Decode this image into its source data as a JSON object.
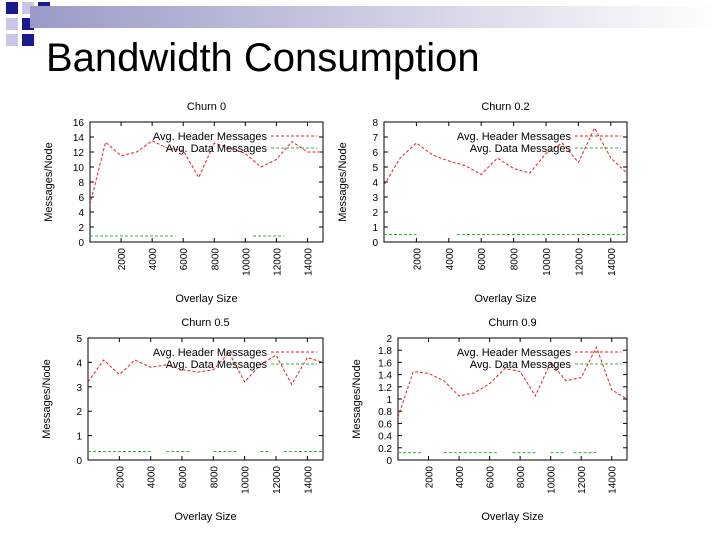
{
  "slide": {
    "title": "Bandwidth Consumption"
  },
  "colors": {
    "header_series": "#e02020",
    "data_series": "#30b030",
    "bullet_dark": "#1a1a8c",
    "bullet_light": "#c8c8e6"
  },
  "chart_data": [
    {
      "type": "line",
      "title": "Churn 0",
      "xlabel": "Overlay Size",
      "ylabel": "Messages/Node",
      "xlim": [
        0,
        15000
      ],
      "ylim": [
        0,
        16
      ],
      "xticks": [
        2000,
        4000,
        6000,
        8000,
        10000,
        12000,
        14000
      ],
      "yticks": [
        0,
        2,
        4,
        6,
        8,
        10,
        12,
        14,
        16
      ],
      "legend": "top-right",
      "series": [
        {
          "name": "Avg. Header Messages",
          "color": "#e02020",
          "x": [
            0,
            1000,
            2000,
            3000,
            4000,
            5000,
            6000,
            7000,
            8000,
            9000,
            10000,
            11000,
            12000,
            13000,
            14000,
            15000
          ],
          "y": [
            5,
            13.3,
            11.5,
            12,
            13.5,
            12.5,
            12.2,
            8.6,
            13.2,
            12.5,
            11.8,
            10,
            11,
            13.4,
            12,
            12
          ]
        },
        {
          "name": "Avg. Data Messages",
          "color": "#30b030",
          "segments": [
            {
              "x": [
                0,
                5500
              ],
              "y": [
                0.8,
                0.8
              ]
            },
            {
              "x": [
                10500,
                12500
              ],
              "y": [
                0.8,
                0.8
              ]
            }
          ]
        }
      ]
    },
    {
      "type": "line",
      "title": "Churn 0.2",
      "xlabel": "Overlay Size",
      "ylabel": "Messages/Node",
      "xlim": [
        0,
        15000
      ],
      "ylim": [
        0,
        8
      ],
      "xticks": [
        2000,
        4000,
        6000,
        8000,
        10000,
        12000,
        14000
      ],
      "yticks": [
        0,
        1,
        2,
        3,
        4,
        5,
        6,
        7,
        8
      ],
      "legend": "top-right",
      "series": [
        {
          "name": "Avg. Header Messages",
          "color": "#e02020",
          "x": [
            0,
            1000,
            2000,
            3000,
            4000,
            5000,
            6000,
            7000,
            8000,
            9000,
            10000,
            11000,
            12000,
            13000,
            14000,
            15000
          ],
          "y": [
            3.8,
            5.6,
            6.6,
            5.8,
            5.4,
            5.1,
            4.5,
            5.6,
            4.9,
            4.6,
            5.9,
            6.6,
            5.3,
            7.6,
            5.6,
            4.6
          ]
        },
        {
          "name": "Avg. Data Messages",
          "color": "#30b030",
          "segments": [
            {
              "x": [
                0,
                2000
              ],
              "y": [
                0.5,
                0.5
              ]
            },
            {
              "x": [
                4500,
                15000
              ],
              "y": [
                0.5,
                0.5
              ]
            }
          ]
        }
      ]
    },
    {
      "type": "line",
      "title": "Churn 0.5",
      "xlabel": "Overlay Size",
      "ylabel": "Messages/Node",
      "xlim": [
        0,
        15000
      ],
      "ylim": [
        0,
        5
      ],
      "xticks": [
        2000,
        4000,
        6000,
        8000,
        10000,
        12000,
        14000
      ],
      "yticks": [
        0,
        1,
        2,
        3,
        4,
        5
      ],
      "legend": "top-right",
      "series": [
        {
          "name": "Avg. Header Messages",
          "color": "#e02020",
          "x": [
            0,
            1000,
            2000,
            3000,
            4000,
            5000,
            6000,
            7000,
            8000,
            9000,
            10000,
            11000,
            12000,
            13000,
            14000,
            15000
          ],
          "y": [
            3.2,
            4.1,
            3.5,
            4.1,
            3.8,
            3.9,
            3.7,
            3.6,
            3.7,
            4.4,
            3.2,
            3.9,
            4.3,
            3.1,
            4.2,
            4
          ]
        },
        {
          "name": "Avg. Data Messages",
          "color": "#30b030",
          "segments": [
            {
              "x": [
                0,
                4000
              ],
              "y": [
                0.35,
                0.35
              ]
            },
            {
              "x": [
                5000,
                6500
              ],
              "y": [
                0.35,
                0.35
              ]
            },
            {
              "x": [
                8000,
                9500
              ],
              "y": [
                0.35,
                0.35
              ]
            },
            {
              "x": [
                11000,
                11500
              ],
              "y": [
                0.35,
                0.35
              ]
            },
            {
              "x": [
                12500,
                15000
              ],
              "y": [
                0.35,
                0.35
              ]
            }
          ]
        }
      ]
    },
    {
      "type": "line",
      "title": "Churn 0.9",
      "xlabel": "Overlay Size",
      "ylabel": "Messages/Node",
      "xlim": [
        0,
        15000
      ],
      "ylim": [
        0,
        2
      ],
      "xticks": [
        2000,
        4000,
        6000,
        8000,
        10000,
        12000,
        14000
      ],
      "yticks": [
        0,
        0.2,
        0.4,
        0.6,
        0.8,
        1,
        1.2,
        1.4,
        1.6,
        1.8,
        2
      ],
      "legend": "top-right",
      "series": [
        {
          "name": "Avg. Header Messages",
          "color": "#e02020",
          "x": [
            0,
            1000,
            2000,
            3000,
            4000,
            5000,
            6000,
            7000,
            8000,
            9000,
            10000,
            11000,
            12000,
            13000,
            14000,
            15000
          ],
          "y": [
            0.7,
            1.45,
            1.42,
            1.3,
            1.05,
            1.1,
            1.25,
            1.5,
            1.45,
            1.05,
            1.6,
            1.3,
            1.35,
            1.85,
            1.15,
            1
          ]
        },
        {
          "name": "Avg. Data Messages",
          "color": "#30b030",
          "segments": [
            {
              "x": [
                0,
                1500
              ],
              "y": [
                0.12,
                0.12
              ]
            },
            {
              "x": [
                3000,
                6500
              ],
              "y": [
                0.12,
                0.12
              ]
            },
            {
              "x": [
                7500,
                9000
              ],
              "y": [
                0.12,
                0.12
              ]
            },
            {
              "x": [
                10000,
                11000
              ],
              "y": [
                0.12,
                0.12
              ]
            },
            {
              "x": [
                11500,
                13000
              ],
              "y": [
                0.12,
                0.12
              ]
            }
          ]
        }
      ]
    }
  ]
}
